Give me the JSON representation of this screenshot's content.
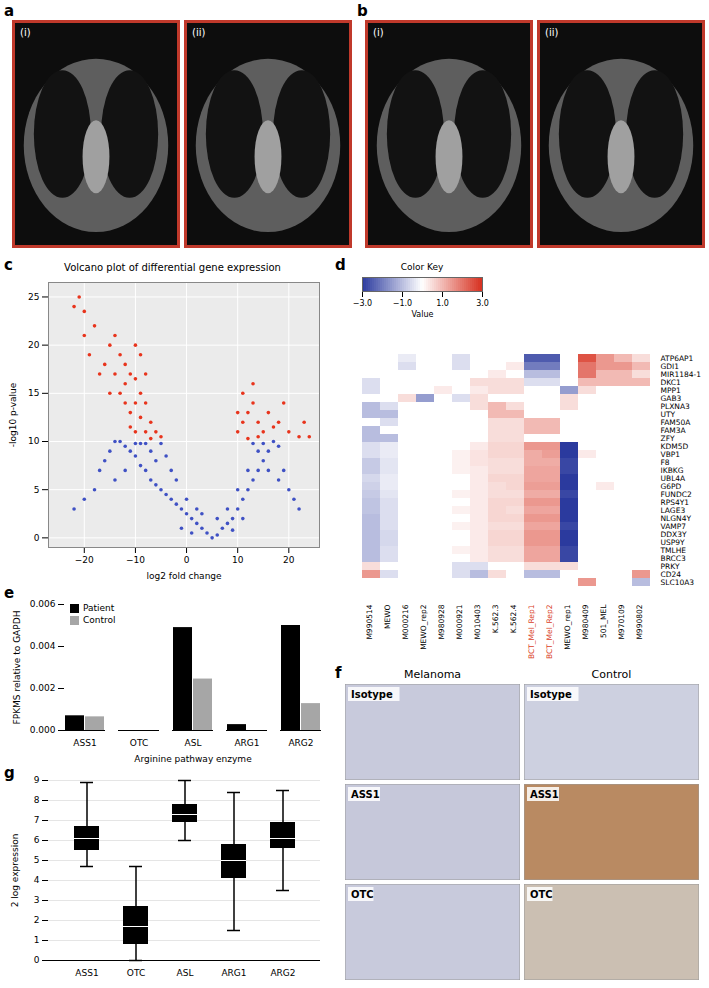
{
  "chart_data": [
    {
      "type": "image",
      "panel": "a",
      "labels": [
        "(i)",
        "(ii)"
      ]
    },
    {
      "type": "image",
      "panel": "b",
      "labels": [
        "(i)",
        "(ii)"
      ]
    },
    {
      "type": "scatter",
      "panel": "c",
      "title": "Volcano plot of differential gene expression",
      "x_label": "log2 fold change",
      "y_label": "-log10 p-value",
      "xlim": [
        -27,
        26
      ],
      "ylim": [
        -1,
        26.5
      ],
      "xticks": [
        -20,
        -10,
        0,
        10,
        20
      ],
      "yticks": [
        0,
        5,
        10,
        15,
        20,
        25
      ],
      "grid": true,
      "series": [
        {
          "color": "#3f51c4",
          "x": [
            5,
            4,
            6,
            3,
            7,
            2,
            8,
            1,
            9,
            0,
            -1,
            10,
            -2,
            -3,
            11,
            -4,
            12,
            -5,
            -6,
            13,
            -7,
            -8,
            14,
            -9,
            -10,
            15,
            -11,
            -12,
            16,
            -13,
            -14,
            17,
            18,
            -6,
            -7,
            -8,
            -9,
            -5,
            -3,
            -2,
            0,
            2,
            3,
            6,
            8,
            10,
            12,
            14,
            19,
            20,
            21,
            22,
            -15,
            -16,
            -17,
            -18,
            -20,
            -22,
            -4,
            -10,
            13,
            15,
            16,
            18,
            -12,
            -14,
            1,
            9,
            -1,
            11
          ],
          "y": [
            0,
            0.5,
            0.3,
            1,
            1,
            1.5,
            1.5,
            2,
            2,
            2.5,
            3,
            3,
            3.5,
            4,
            4,
            4.5,
            5,
            5,
            5.5,
            6,
            6,
            7,
            7,
            7.5,
            8.5,
            8,
            9,
            9.5,
            9,
            10,
            10,
            10,
            9.5,
            8,
            9,
            9.8,
            9.8,
            9.8,
            7,
            6,
            4,
            3,
            2.5,
            2,
            3,
            5,
            7,
            9,
            7,
            5,
            4,
            3,
            9,
            8,
            7,
            5,
            4,
            3,
            8.5,
            9.8,
            9.8,
            9.8,
            7,
            6,
            7,
            6,
            0.5,
            0.8,
            1,
            2
          ]
        },
        {
          "color": "#e8341c",
          "x": [
            -21,
            -22,
            -20,
            -18,
            -15,
            -14,
            -13,
            -12,
            -16,
            -11,
            -10,
            -12,
            -14,
            -9,
            -10,
            -8,
            -11,
            -12,
            -9,
            -7,
            -8,
            -10,
            -6,
            -13,
            -15,
            -17,
            -19,
            -20,
            -5,
            -7,
            -11,
            -9,
            -10,
            -8,
            10,
            11,
            12,
            13,
            14,
            15,
            16,
            17,
            18,
            19,
            20,
            22,
            24,
            12,
            14,
            11,
            13,
            10,
            23
          ],
          "y": [
            25,
            24,
            23.5,
            22,
            20,
            21,
            19,
            18,
            18,
            17,
            16.5,
            16,
            17,
            15,
            14,
            14,
            13,
            14,
            12.5,
            12,
            11,
            11,
            11,
            15,
            15,
            17,
            19,
            21,
            10.5,
            10.3,
            11.5,
            19,
            20,
            17,
            11,
            12,
            13,
            14,
            12,
            11,
            13,
            11.5,
            12,
            14,
            11,
            10.5,
            10.5,
            10.3,
            10.5,
            15,
            16,
            13,
            12
          ]
        }
      ]
    },
    {
      "type": "heatmap",
      "panel": "d",
      "title": "Color Key",
      "colorbar_label": "Value",
      "colorbar_range": [
        -3,
        3
      ],
      "colorbar_ticks": [
        -3,
        -1,
        1,
        3
      ],
      "colorscale": [
        "#2b3a9e",
        "#ffffff",
        "#d7301f"
      ],
      "columns": [
        "M990514",
        "MEWO",
        "M000216",
        "MEWO_rep2",
        "M980928",
        "M000921",
        "M010403",
        "K.562.3",
        "K.562.4",
        "BCT_Mel_Rep1",
        "BCT_Mel_Rep2",
        "MEWO_rep1",
        "M980409",
        "501_MEL",
        "M970109",
        "M990802"
      ],
      "column_colors": [
        "#000000",
        "#000000",
        "#000000",
        "#000000",
        "#000000",
        "#000000",
        "#000000",
        "#000000",
        "#000000",
        "#d9401f",
        "#d9401f",
        "#000000",
        "#000000",
        "#000000",
        "#000000",
        "#000000"
      ],
      "rows": [
        "ATP6AP1",
        "GDI1",
        "MIR1184-1",
        "DKC1",
        "MPP1",
        "GAB3",
        "PLXNA3",
        "UTY",
        "FAM50A",
        "FAM3A",
        "ZFY",
        "KDM5D",
        "VBP1",
        "F8",
        "IKBKG",
        "UBL4A",
        "G6PD",
        "FUNDC2",
        "RPS4Y1",
        "LAGE3",
        "NLGN4Y",
        "VAMP7",
        "DDX3Y",
        "USP9Y",
        "TMLHE",
        "BRCC3",
        "PRKY",
        "CD24",
        "SLC10A3"
      ],
      "cells": [
        [
          0,
          0,
          -0.3,
          0,
          0,
          -0.5,
          0,
          0,
          0,
          -2.5,
          -2.5,
          0,
          2.5,
          1.5,
          1,
          0.5
        ],
        [
          0,
          0,
          -0.5,
          0,
          0,
          -0.5,
          0,
          0,
          0.3,
          -2,
          -2,
          0,
          2,
          1.5,
          1.5,
          1
        ],
        [
          0,
          0,
          0,
          0,
          0,
          0,
          0,
          0.3,
          0,
          -1,
          -1,
          0,
          2,
          1,
          1,
          0.5
        ],
        [
          -0.5,
          0,
          0,
          0,
          0,
          0,
          0.5,
          0.5,
          0.5,
          -0.5,
          -0.5,
          0,
          1,
          1,
          1,
          1
        ],
        [
          -0.5,
          0,
          0,
          0,
          0.3,
          0,
          0.3,
          0.5,
          0.5,
          0,
          0,
          -1.5,
          0.5,
          0,
          0,
          0
        ],
        [
          0,
          0,
          0.5,
          -1.5,
          0,
          -0.5,
          0.5,
          0,
          0,
          0,
          0,
          0.5,
          0,
          0,
          0,
          0
        ],
        [
          -1,
          -0.5,
          0,
          0,
          0,
          0,
          0.5,
          1,
          0.5,
          0,
          0,
          0.5,
          0,
          0,
          0,
          0
        ],
        [
          -1,
          -1,
          0,
          0,
          0,
          0,
          0,
          1,
          1,
          0,
          0,
          0,
          0,
          0,
          0,
          0
        ],
        [
          0,
          -0.5,
          0,
          0,
          0,
          0,
          0,
          0.5,
          0.5,
          1,
          1,
          0,
          0,
          0,
          0,
          0
        ],
        [
          -1,
          0,
          0,
          0,
          0,
          0,
          0,
          0.5,
          0.5,
          1,
          1,
          0,
          0,
          0,
          0,
          0
        ],
        [
          -1,
          -1,
          0,
          0,
          0,
          0,
          0,
          0.5,
          0.5,
          0,
          0,
          0,
          0,
          0,
          0,
          0
        ],
        [
          -0.5,
          -0.3,
          0,
          0,
          0,
          0,
          0.3,
          0.6,
          0.6,
          1.5,
          1.5,
          -3,
          0,
          0,
          0,
          0
        ],
        [
          -0.5,
          -0.3,
          0,
          0,
          0,
          0.2,
          0.4,
          0.6,
          0.6,
          1.2,
          1.4,
          -3,
          0.3,
          0,
          0,
          0
        ],
        [
          -0.8,
          -0.4,
          0,
          0,
          0,
          0.2,
          0.4,
          0.5,
          0.5,
          1.2,
          1.2,
          -2.8,
          0,
          0,
          0,
          0
        ],
        [
          -0.8,
          -0.4,
          0,
          0,
          0,
          0.2,
          0.3,
          0.5,
          0.5,
          1.3,
          1.3,
          -2.8,
          0,
          0,
          0,
          0
        ],
        [
          -0.6,
          -0.3,
          0,
          0,
          0,
          0,
          0.3,
          0.6,
          0.6,
          1.3,
          1.3,
          -3,
          0,
          0,
          0,
          0
        ],
        [
          -0.7,
          -0.3,
          0,
          0,
          0,
          0,
          0.3,
          0.5,
          0.6,
          1.4,
          1.4,
          -3,
          0,
          0.3,
          0,
          0
        ],
        [
          -0.8,
          -0.4,
          0,
          0,
          0,
          0.2,
          0.3,
          0.5,
          0.5,
          1.2,
          1.2,
          -2.8,
          0,
          0,
          0,
          0
        ],
        [
          -0.9,
          -0.5,
          0,
          0,
          0,
          0,
          0.3,
          0.6,
          0.6,
          1.5,
          1.5,
          -3,
          0,
          0,
          0,
          0
        ],
        [
          -0.9,
          -0.5,
          0,
          0,
          0,
          0.2,
          0.3,
          0.6,
          0.5,
          1.3,
          1.3,
          -3,
          0,
          0,
          0,
          0
        ],
        [
          -1,
          -0.5,
          0,
          0,
          0,
          0,
          0.3,
          0.6,
          0.6,
          1.5,
          1.5,
          -3,
          0,
          0,
          0,
          0
        ],
        [
          -1,
          -0.5,
          0,
          0,
          0,
          0.2,
          0.3,
          0.5,
          0.5,
          1.3,
          1.3,
          -2.8,
          0,
          0,
          0,
          0
        ],
        [
          -1,
          -0.6,
          0,
          0,
          0,
          0,
          0.3,
          0.6,
          0.6,
          1.5,
          1.5,
          -3,
          0,
          0,
          0,
          0
        ],
        [
          -1,
          -0.6,
          0,
          0,
          0,
          0,
          0.3,
          0.6,
          0.6,
          1.5,
          1.5,
          -3,
          0,
          0,
          0,
          0
        ],
        [
          -1,
          -0.5,
          0,
          0,
          0,
          0.2,
          0.3,
          0.5,
          0.5,
          1.3,
          1.3,
          -2.8,
          0,
          0,
          0,
          0
        ],
        [
          -1,
          -0.5,
          0,
          0,
          0,
          0,
          0.3,
          0.5,
          0.5,
          1.3,
          1.3,
          -2.8,
          0,
          0,
          0,
          0
        ],
        [
          0.5,
          0,
          0,
          0,
          0,
          -0.5,
          -0.5,
          0,
          0,
          0.5,
          0.5,
          0.5,
          0,
          0,
          0,
          0
        ],
        [
          1.5,
          -0.5,
          0,
          0,
          0,
          -0.5,
          -1,
          0.5,
          0,
          -1,
          -1,
          0,
          0,
          0,
          0,
          1.5
        ],
        [
          0,
          0,
          0,
          0,
          0,
          0,
          0,
          0,
          0,
          0,
          0,
          0,
          1.5,
          0,
          0,
          -1
        ]
      ]
    },
    {
      "type": "bar",
      "panel": "e",
      "x_label": "Arginine pathway enzyme",
      "y_label": "FPKMS relative to GAPDH",
      "categories": [
        "ASS1",
        "OTC",
        "ASL",
        "ARG1",
        "ARG2"
      ],
      "ylim": [
        0,
        0.006
      ],
      "yticks": [
        {
          "value": 0,
          "label": "0.000"
        },
        {
          "value": 0.002,
          "label": "0.002"
        },
        {
          "value": 0.004,
          "label": "0.004"
        },
        {
          "value": 0.006,
          "label": "0.006"
        }
      ],
      "legend": "top-left",
      "series": [
        {
          "name": "Patient",
          "color": "#000000",
          "values": [
            0.0007,
            0,
            0.0049,
            0.00028,
            0.005
          ]
        },
        {
          "name": "Control",
          "color": "#a6a6a6",
          "values": [
            0.00065,
            0,
            0.00245,
            0,
            0.00128
          ]
        }
      ]
    },
    {
      "type": "image",
      "panel": "f",
      "columns": [
        "Melanoma",
        "Control"
      ],
      "rows": [
        "Isotype",
        "ASS1",
        "OTC"
      ]
    },
    {
      "type": "box",
      "panel": "g",
      "y_label": "2 log expression",
      "categories": [
        "ASS1",
        "OTC",
        "ASL",
        "ARG1",
        "ARG2"
      ],
      "ylim": [
        0,
        9
      ],
      "yticks": [
        0,
        1,
        2,
        3,
        4,
        5,
        6,
        7,
        8,
        9
      ],
      "grid": true,
      "color": "#000000",
      "min": [
        4.7,
        0,
        6.0,
        1.5,
        3.5
      ],
      "q1": [
        5.5,
        0.8,
        6.9,
        4.1,
        5.6
      ],
      "median": [
        6.1,
        1.7,
        7.3,
        5.0,
        6.1
      ],
      "q3": [
        6.7,
        2.7,
        7.8,
        5.8,
        6.9
      ],
      "max": [
        8.9,
        4.7,
        9.0,
        8.4,
        8.5
      ]
    }
  ]
}
